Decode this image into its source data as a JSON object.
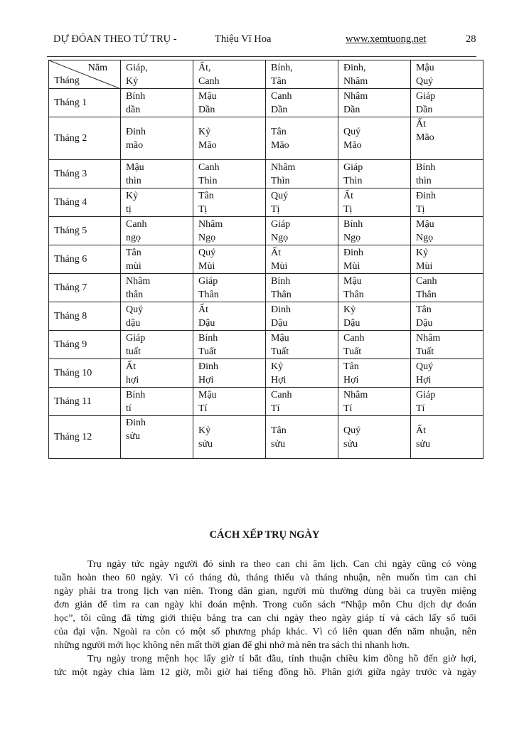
{
  "header": {
    "title": "DỰ ĐÓAN THEO TỨ TRỤ -",
    "author": "Thiệu Vĩ  Hoa",
    "url": "www.xemtuong.net",
    "page": "28"
  },
  "table": {
    "corner_year": "Năm",
    "corner_month": "Tháng",
    "columns": [
      [
        "Giáp,",
        "Kỷ"
      ],
      [
        "Ất,",
        "Canh"
      ],
      [
        "Bính,",
        "Tân"
      ],
      [
        "Đinh,",
        "Nhâm"
      ],
      [
        "Mậu",
        "Quý"
      ]
    ],
    "rows": [
      {
        "month": "Tháng 1",
        "cells": [
          [
            "Bính",
            "dần"
          ],
          [
            "Mậu",
            "Dần"
          ],
          [
            "Canh",
            "Dần"
          ],
          [
            "Nhâm",
            "Dần"
          ],
          [
            "Giáp",
            "Dần"
          ]
        ]
      },
      {
        "month": "Tháng  2",
        "cells": [
          [
            "Đinh",
            "mão"
          ],
          [
            "Kỷ",
            "Mão"
          ],
          [
            "Tân",
            "Mão"
          ],
          [
            "Quý",
            "Mão"
          ],
          [
            "Ất",
            "Mão"
          ]
        ]
      },
      {
        "month": "Tháng 3",
        "cells": [
          [
            "Mậu",
            "thìn"
          ],
          [
            "Canh",
            "Thìn"
          ],
          [
            "Nhâm",
            "Thìn"
          ],
          [
            "Giáp",
            "Thìn"
          ],
          [
            "Bính",
            "thìn"
          ]
        ]
      },
      {
        "month": "Tháng 4",
        "cells": [
          [
            "Kỷ",
            "tị"
          ],
          [
            "Tân",
            "Tị"
          ],
          [
            "Quý",
            "Tị"
          ],
          [
            "Ất",
            "Tị"
          ],
          [
            "Đinh",
            "Tị"
          ]
        ]
      },
      {
        "month": "Tháng 5",
        "cells": [
          [
            "Canh",
            "ngọ"
          ],
          [
            "Nhâm",
            "Ngọ"
          ],
          [
            "Giáp",
            "Ngọ"
          ],
          [
            "Bính",
            "Ngọ"
          ],
          [
            "Mậu",
            "Ngọ"
          ]
        ]
      },
      {
        "month": "Tháng 6",
        "cells": [
          [
            "Tân",
            "mùi"
          ],
          [
            "Quý",
            "Mùi"
          ],
          [
            "Ất",
            "Mùi"
          ],
          [
            "Đinh",
            "Mùi"
          ],
          [
            "Kỷ",
            "Mùi"
          ]
        ]
      },
      {
        "month": "Tháng 7",
        "cells": [
          [
            "Nhâm",
            "thân"
          ],
          [
            "Giáp",
            "Thân"
          ],
          [
            "Bính",
            "Thân"
          ],
          [
            "Mậu",
            "Thân"
          ],
          [
            "Canh",
            "Thân"
          ]
        ]
      },
      {
        "month": "Tháng 8",
        "cells": [
          [
            "Quý",
            "dậu"
          ],
          [
            "Ất",
            "Dậu"
          ],
          [
            "Đinh",
            "Dậu"
          ],
          [
            "Kỷ",
            "Dậu"
          ],
          [
            "Tân",
            "Dậu"
          ]
        ]
      },
      {
        "month": "Tháng 9",
        "cells": [
          [
            "Giáp",
            "tuất"
          ],
          [
            "Bính",
            "Tuất"
          ],
          [
            "Mậu",
            "Tuất"
          ],
          [
            "Canh",
            "Tuất"
          ],
          [
            "Nhâm",
            "Tuất"
          ]
        ]
      },
      {
        "month": "Tháng 10",
        "cells": [
          [
            "Ất",
            "hợi"
          ],
          [
            "Đinh",
            "Hợi"
          ],
          [
            "Kỷ",
            "Hợi"
          ],
          [
            "Tân",
            "Hợi"
          ],
          [
            "Quý",
            "Hợi"
          ]
        ]
      },
      {
        "month": "Tháng 11",
        "cells": [
          [
            "Bính",
            "tí"
          ],
          [
            "Mậu",
            "Tí"
          ],
          [
            "Canh",
            "Tí"
          ],
          [
            "Nhâm",
            "Tí"
          ],
          [
            "Giáp",
            "Tí"
          ]
        ]
      },
      {
        "month": "Tháng 12",
        "cells": [
          [
            "Đinh",
            "sửu"
          ],
          [
            "Kỷ",
            "sửu"
          ],
          [
            "Tân",
            "sửu"
          ],
          [
            "Quý",
            "sửu"
          ],
          [
            "Ất",
            "sửu"
          ]
        ]
      }
    ]
  },
  "section": {
    "title": "CÁCH XẾP TRỤ NGÀY",
    "paragraphs": [
      [
        "Trụ ngày tức ngày người đó sinh ra theo can chi âm lịch. Can chi ngày cũng có vòng",
        "tuần hoàn theo 60 ngày. Vì có tháng đủ, tháng thiếu và tháng nhuận, nên muốn tìm can chi",
        "ngày phải tra trong lịch vạn niên. Trong dân gian, người mù thường dùng bài ca truyền miệng",
        "đơn giản để tìm ra can ngày khi đoán mệnh. Trong cuốn sách “Nhập môn Chu dịch dự đoán",
        "học”, tôi cũng đã từng giới thiệu bảng tra can chi ngày theo ngày giáp tí và cách lấy số tuổi",
        "của đại vận. Ngoài ra còn có một số phương pháp khác. Vì có liên quan đến năm nhuận, nên",
        "những người mới học không nên mất thời gian để ghi nhớ mà nên tra sách thì nhanh hơn."
      ],
      [
        "Trụ ngày trong mệnh học lấy giờ tí bắt đầu, tính thuận chiều kim đồng hồ đến giờ hợi,",
        "tức một ngày chia làm 12 giờ, mỗi giờ hai tiếng đồng hồ. Phân giới giữa ngày trước và ngày"
      ]
    ]
  }
}
